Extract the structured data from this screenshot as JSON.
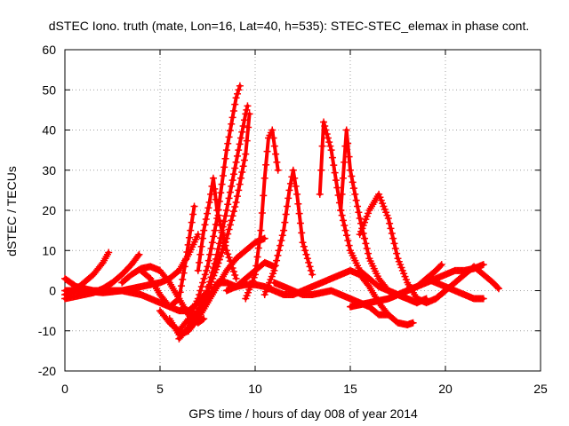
{
  "chart_data": {
    "type": "scatter",
    "title": "dSTEC Iono. truth (mate, Lon=16, Lat=40, h=535): STEC-STEC_elemax in phase cont.",
    "xlabel": "GPS time / hours of day 008 of year 2014",
    "ylabel": "dSTEC  / TECUs",
    "xlim": [
      0,
      25
    ],
    "ylim": [
      -20,
      60
    ],
    "xticks": [
      "0",
      "5",
      "10",
      "15",
      "20",
      "25"
    ],
    "yticks": [
      "-20",
      "-10",
      "0",
      "10",
      "20",
      "30",
      "40",
      "50",
      "60"
    ],
    "grid": true,
    "legend": "none",
    "marker": "+",
    "color": "#ff0000",
    "series": [
      {
        "x": [
          0.0,
          0.5,
          1.0,
          1.5,
          2.0,
          2.3
        ],
        "y": [
          -1,
          0,
          2,
          4,
          7,
          9.5
        ]
      },
      {
        "x": [
          0.0,
          0.5,
          1.0,
          1.5,
          2.0,
          2.5,
          3.0,
          3.5,
          3.9
        ],
        "y": [
          -2,
          -1.5,
          -1,
          -0.5,
          0.5,
          2,
          4,
          6.5,
          9
        ]
      },
      {
        "x": [
          0.0,
          0.3,
          0.6,
          1.0,
          1.5,
          2.0,
          2.5,
          3.0,
          3.5,
          4.0,
          4.5,
          5.0,
          5.5,
          6.0,
          6.5,
          7.0,
          7.5,
          8.0,
          8.4
        ],
        "y": [
          3,
          2,
          1,
          0.5,
          0,
          0,
          0,
          0,
          -0.5,
          -1,
          -2,
          -3,
          -4,
          -5,
          -5,
          -3,
          0,
          6,
          12
        ]
      },
      {
        "x": [
          0.0,
          1.0,
          2.0,
          3.0,
          4.0,
          4.5,
          5.0,
          5.5,
          6.0,
          6.5,
          7.0
        ],
        "y": [
          0,
          0,
          -0.5,
          0,
          1,
          1.5,
          2,
          3,
          5,
          9,
          14
        ]
      },
      {
        "x": [
          3.0,
          3.5,
          4.0,
          4.5,
          5.0,
          5.5,
          6.0,
          6.5,
          7.0,
          7.3
        ],
        "y": [
          2,
          4,
          5.5,
          6,
          5,
          2,
          -2,
          -6,
          -8,
          -7
        ]
      },
      {
        "x": [
          4.0,
          4.5,
          5.0,
          5.5,
          6.0,
          6.3,
          6.6,
          6.8
        ],
        "y": [
          5,
          3,
          -1,
          -4,
          -2,
          6,
          15,
          21
        ]
      },
      {
        "x": [
          5.0,
          5.5,
          6.0,
          6.5,
          7.0,
          7.5,
          8.0,
          8.5,
          9.0,
          9.2
        ],
        "y": [
          -5,
          -8,
          -10,
          -7,
          -2,
          6,
          18,
          35,
          48,
          51
        ]
      },
      {
        "x": [
          5.5,
          6.0,
          6.5,
          7.0,
          7.5,
          8.0,
          8.5,
          9.0,
          9.5,
          9.6
        ],
        "y": [
          -7,
          -11,
          -10,
          -6,
          0,
          9,
          20,
          32,
          44,
          46
        ]
      },
      {
        "x": [
          6.0,
          6.5,
          7.0,
          7.5,
          8.0,
          8.5,
          9.0,
          9.5,
          9.7
        ],
        "y": [
          -12,
          -9,
          -5,
          0,
          6,
          13,
          22,
          34,
          44
        ]
      },
      {
        "x": [
          6.5,
          7.0,
          7.5,
          8.0,
          8.5,
          9.0,
          9.5,
          10.0,
          10.5
        ],
        "y": [
          -10,
          -7,
          -3,
          1,
          5,
          8,
          10,
          12,
          13
        ]
      },
      {
        "x": [
          7.0,
          7.3,
          7.6,
          7.8,
          8.0,
          8.5,
          9.0
        ],
        "y": [
          5,
          15,
          22,
          28,
          20,
          10,
          3
        ]
      },
      {
        "x": [
          6.5,
          7.0,
          7.5,
          8.0,
          8.5,
          9.0,
          9.5,
          10.0,
          10.5,
          11.0
        ],
        "y": [
          -8,
          -5,
          -2,
          2,
          2,
          1,
          3,
          5,
          7,
          6
        ]
      },
      {
        "x": [
          9.5,
          10.0,
          10.3,
          10.5,
          10.7,
          10.9,
          11.2
        ],
        "y": [
          -2,
          4,
          15,
          28,
          38,
          40,
          30
        ]
      },
      {
        "x": [
          8.5,
          9.0,
          9.5,
          10.0,
          10.5,
          11.0,
          11.5,
          12.0,
          12.5,
          13.0,
          13.5,
          14.0,
          14.5,
          15.0,
          15.5,
          16.0,
          16.5,
          17.0,
          17.5,
          18.0,
          18.3
        ],
        "y": [
          0,
          1,
          1.5,
          1.5,
          1,
          0,
          -1,
          -1,
          0,
          1,
          2,
          3,
          4,
          5,
          4,
          1,
          -3,
          -6,
          -8,
          -8.5,
          -8
        ]
      },
      {
        "x": [
          10.5,
          11.0,
          11.5,
          11.8,
          12.0,
          12.2,
          12.5,
          13.0
        ],
        "y": [
          -1,
          5,
          15,
          25,
          30,
          24,
          12,
          4
        ]
      },
      {
        "x": [
          11.0,
          11.5,
          12.0,
          12.5,
          13.0,
          13.5,
          14.0,
          14.5,
          15.0,
          15.5,
          16.0,
          16.5,
          17.0
        ],
        "y": [
          2,
          1,
          0,
          -1,
          -1,
          -0.5,
          0,
          -1,
          -2,
          -3,
          -4,
          -6,
          -6
        ]
      },
      {
        "x": [
          13.4,
          13.6,
          14.0,
          14.5,
          15.0,
          15.5,
          16.0,
          16.5,
          17.0,
          17.5,
          18.0,
          18.5
        ],
        "y": [
          24,
          42,
          35,
          20,
          10,
          5,
          3,
          1,
          0,
          -1,
          -2,
          -3
        ]
      },
      {
        "x": [
          14.5,
          14.8,
          15.0,
          15.5,
          16.0,
          16.5,
          17.0,
          17.5,
          18.0,
          18.5,
          19.0
        ],
        "y": [
          20,
          40,
          30,
          18,
          8,
          3,
          0,
          -1,
          -2,
          -3,
          -2
        ]
      },
      {
        "x": [
          15.5,
          16.0,
          16.5,
          17.0,
          17.5,
          18.0,
          18.5,
          19.0,
          19.5,
          20.0
        ],
        "y": [
          14,
          20,
          24,
          18,
          8,
          2,
          -2,
          -3,
          -2,
          0
        ]
      },
      {
        "x": [
          15.0,
          16.0,
          17.0,
          17.5,
          18.0,
          18.5,
          19.0,
          19.5,
          20.0,
          20.5,
          21.0,
          21.5,
          22.0
        ],
        "y": [
          -4,
          -3,
          -2,
          -1,
          0,
          1,
          2,
          3,
          4,
          5,
          5,
          5.5,
          6.5
        ]
      },
      {
        "x": [
          17.0,
          17.5,
          18.0,
          18.5,
          19.0,
          19.5,
          19.8
        ],
        "y": [
          -2,
          -1,
          0,
          1,
          3,
          5,
          6.5
        ]
      },
      {
        "x": [
          19.5,
          20.0,
          20.5,
          21.0,
          21.5,
          22.0,
          22.5,
          22.8
        ],
        "y": [
          -2,
          0,
          2,
          4,
          6,
          4,
          2,
          0.5
        ]
      },
      {
        "x": [
          19.0,
          19.5,
          20.0,
          20.5,
          21.0,
          21.5,
          22.0
        ],
        "y": [
          3,
          2,
          1,
          0,
          -1,
          -2,
          -2
        ]
      }
    ]
  }
}
